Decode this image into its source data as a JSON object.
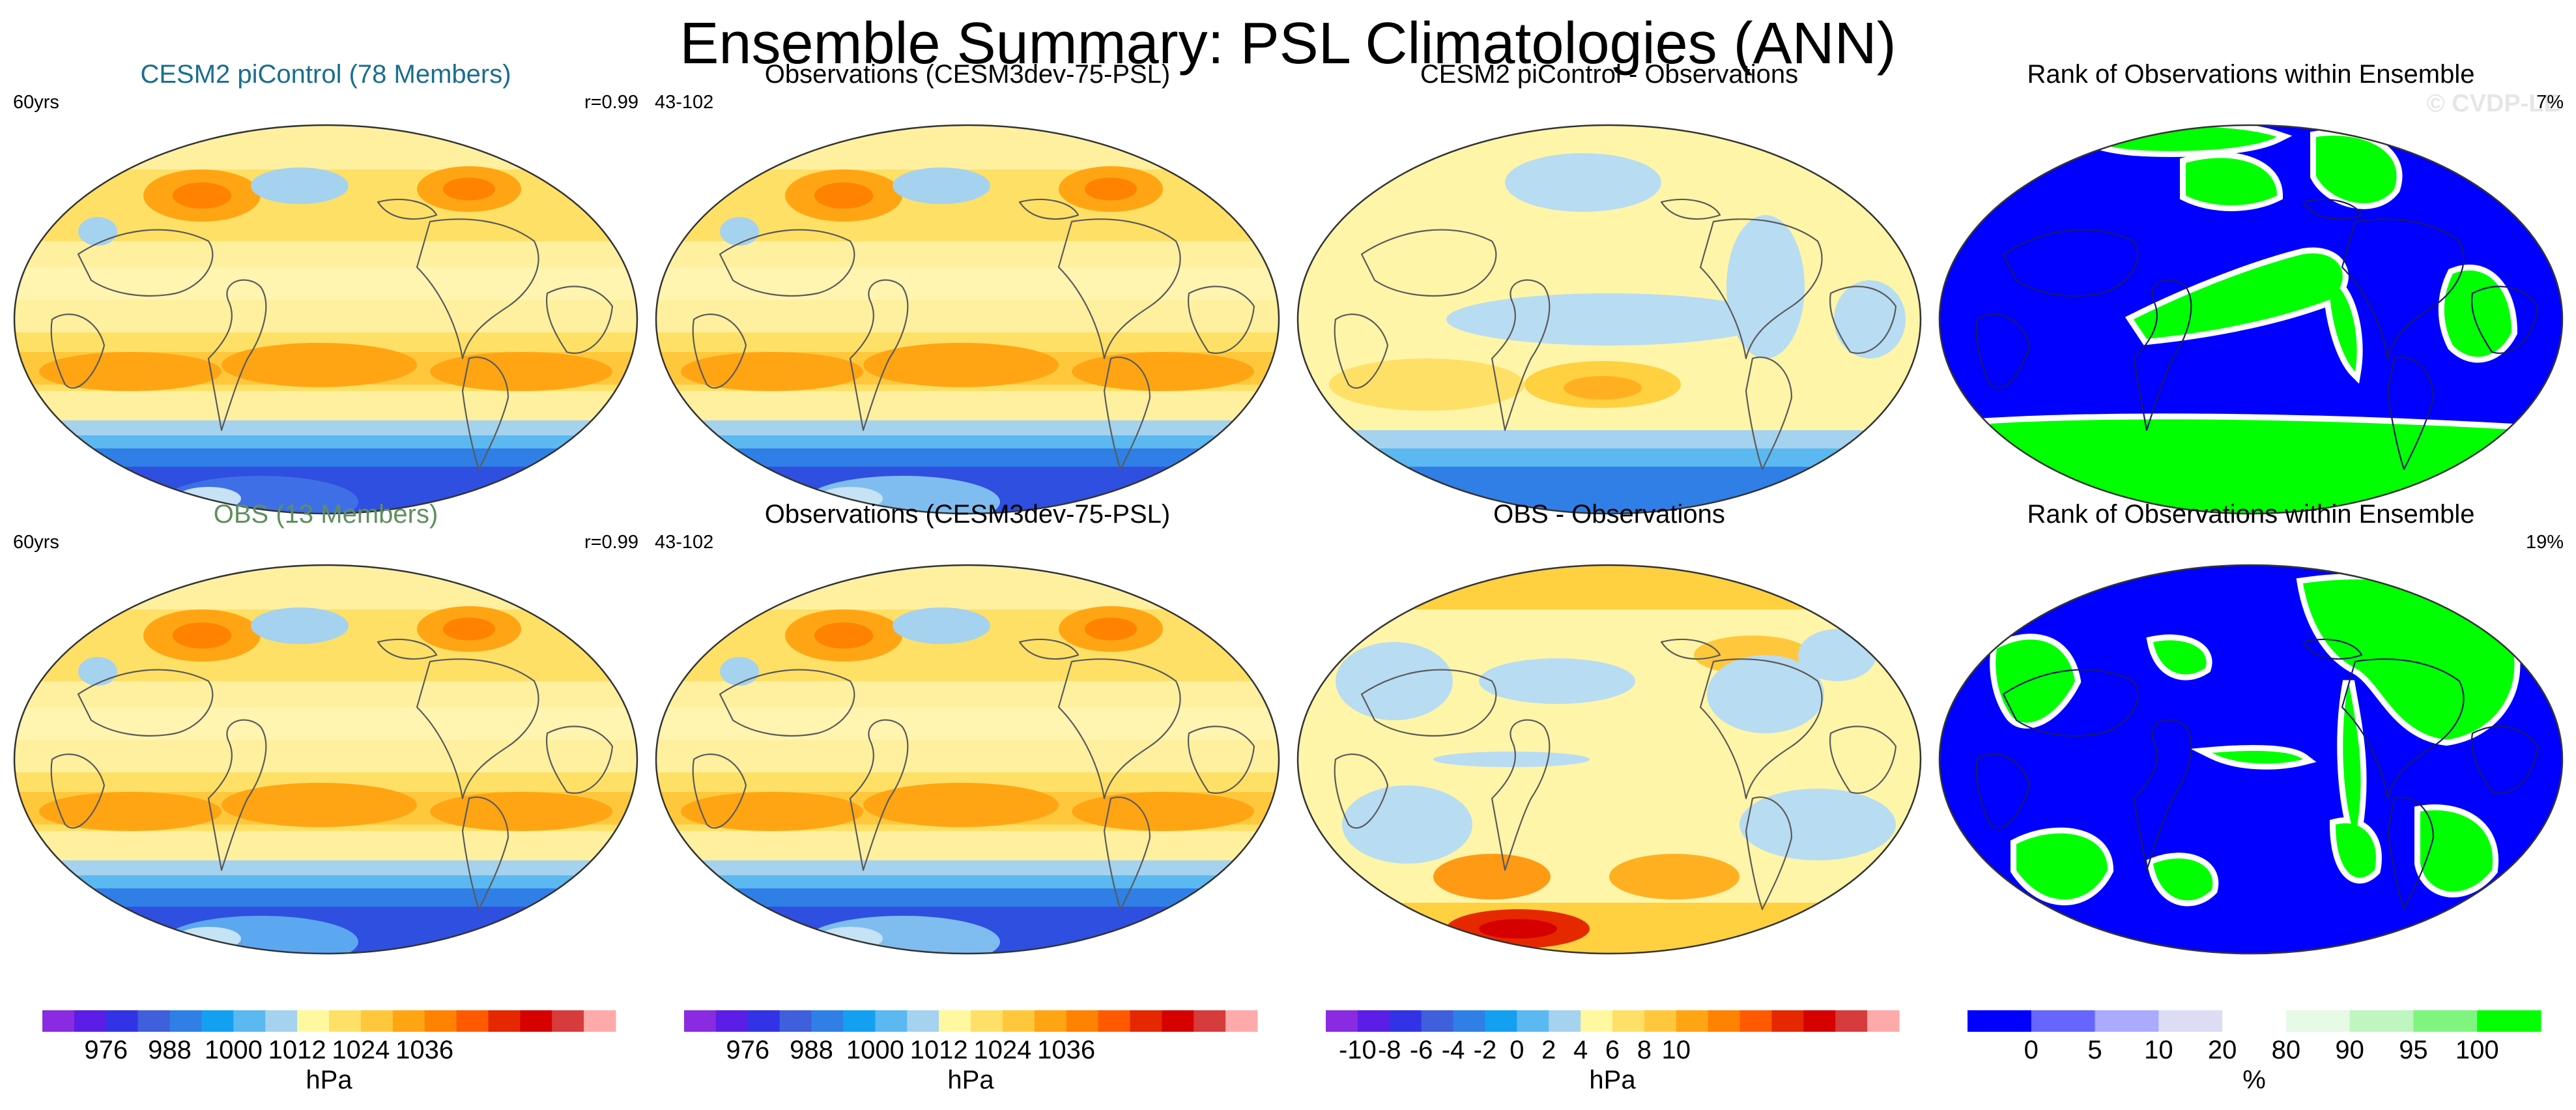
{
  "title": "Ensemble Summary: PSL Climatologies (ANN)",
  "watermark": "© CVDP-LE",
  "panels": [
    {
      "row": 0,
      "col": 0,
      "kind": "psl",
      "title": "CESM2 piControl (78 Members)",
      "title_color": "#1a6e8f",
      "left_label": "60yrs",
      "right_label": "r=0.99",
      "variant": 0
    },
    {
      "row": 0,
      "col": 1,
      "kind": "psl",
      "title": "Observations (CESM3dev-75-PSL)",
      "title_color": "#000000",
      "left_label": "43-102",
      "right_label": "",
      "variant": 1
    },
    {
      "row": 0,
      "col": 2,
      "kind": "diff",
      "title": "CESM2 piControl - Observations",
      "title_color": "#000000",
      "left_label": "",
      "right_label": "",
      "variant": 0
    },
    {
      "row": 0,
      "col": 3,
      "kind": "rank",
      "title": "Rank of Observations within Ensemble",
      "title_color": "#000000",
      "left_label": "",
      "right_label": "7%",
      "variant": 0
    },
    {
      "row": 1,
      "col": 0,
      "kind": "psl",
      "title": "OBS (13 Members)",
      "title_color": "#5f8f5f",
      "left_label": "60yrs",
      "right_label": "r=0.99",
      "variant": 2
    },
    {
      "row": 1,
      "col": 1,
      "kind": "psl",
      "title": "Observations (CESM3dev-75-PSL)",
      "title_color": "#000000",
      "left_label": "43-102",
      "right_label": "",
      "variant": 1
    },
    {
      "row": 1,
      "col": 2,
      "kind": "diff2",
      "title": "OBS - Observations",
      "title_color": "#000000",
      "left_label": "",
      "right_label": "",
      "variant": 1
    },
    {
      "row": 1,
      "col": 3,
      "kind": "rank",
      "title": "Rank of Observations within Ensemble",
      "title_color": "#000000",
      "left_label": "",
      "right_label": "19%",
      "variant": 1
    }
  ],
  "colorbars": [
    {
      "col": 0,
      "colors": [
        "#8a2be2",
        "#5a1ee6",
        "#3333e6",
        "#3f5fdc",
        "#2f7fe6",
        "#14a0f0",
        "#5bb8f0",
        "#a5d2ee",
        "#fff8a0",
        "#ffe066",
        "#ffc83c",
        "#ffa514",
        "#ff8200",
        "#ff5a00",
        "#e62800",
        "#d70000",
        "#d73c3c",
        "#ffaaaa"
      ],
      "labels": [
        "976",
        "988",
        "1000",
        "1012",
        "1024",
        "1036"
      ],
      "label_pos": [
        2,
        4,
        6,
        8,
        10,
        12
      ],
      "unit": "hPa"
    },
    {
      "col": 1,
      "colors": [
        "#8a2be2",
        "#5a1ee6",
        "#3333e6",
        "#3f5fdc",
        "#2f7fe6",
        "#14a0f0",
        "#5bb8f0",
        "#a5d2ee",
        "#fff8a0",
        "#ffe066",
        "#ffc83c",
        "#ffa514",
        "#ff8200",
        "#ff5a00",
        "#e62800",
        "#d70000",
        "#d73c3c",
        "#ffaaaa"
      ],
      "labels": [
        "976",
        "988",
        "1000",
        "1012",
        "1024",
        "1036"
      ],
      "label_pos": [
        2,
        4,
        6,
        8,
        10,
        12
      ],
      "unit": "hPa"
    },
    {
      "col": 2,
      "colors": [
        "#8a2be2",
        "#5a1ee6",
        "#3333e6",
        "#3f5fdc",
        "#2f7fe6",
        "#14a0f0",
        "#5bb8f0",
        "#a5d2ee",
        "#fff8a0",
        "#ffe066",
        "#ffc83c",
        "#ffa514",
        "#ff8200",
        "#ff5a00",
        "#e62800",
        "#d70000",
        "#d73c3c",
        "#ffaaaa"
      ],
      "labels": [
        "-10",
        "-8",
        "-6",
        "-4",
        "-2",
        "0",
        "2",
        "4",
        "6",
        "8",
        "10"
      ],
      "label_pos": [
        1,
        2,
        3,
        4,
        5,
        6,
        7,
        8,
        9,
        10,
        11
      ],
      "unit": "hPa"
    },
    {
      "col": 3,
      "colors": [
        "#0000ff",
        "#6666ff",
        "#aaaaff",
        "#dcdcf5",
        "#ffffff",
        "#e6fae6",
        "#bff5bf",
        "#7ff57f",
        "#00ff00"
      ],
      "labels": [
        "0",
        "5",
        "10",
        "20",
        "80",
        "90",
        "95",
        "100"
      ],
      "label_pos": [
        1,
        2,
        3,
        4,
        5,
        6,
        7,
        8
      ],
      "unit": "%"
    }
  ],
  "palette": {
    "land_line": "#5a5a5a",
    "psl_bands": [
      "#2f4fe0",
      "#2f7fe6",
      "#5bb8f0",
      "#a5d2ee",
      "#fff8a0",
      "#ffe066",
      "#ffc83c",
      "#ffa514",
      "#ff8200"
    ],
    "rank_blue": "#0000ff",
    "rank_green": "#00ff00"
  }
}
